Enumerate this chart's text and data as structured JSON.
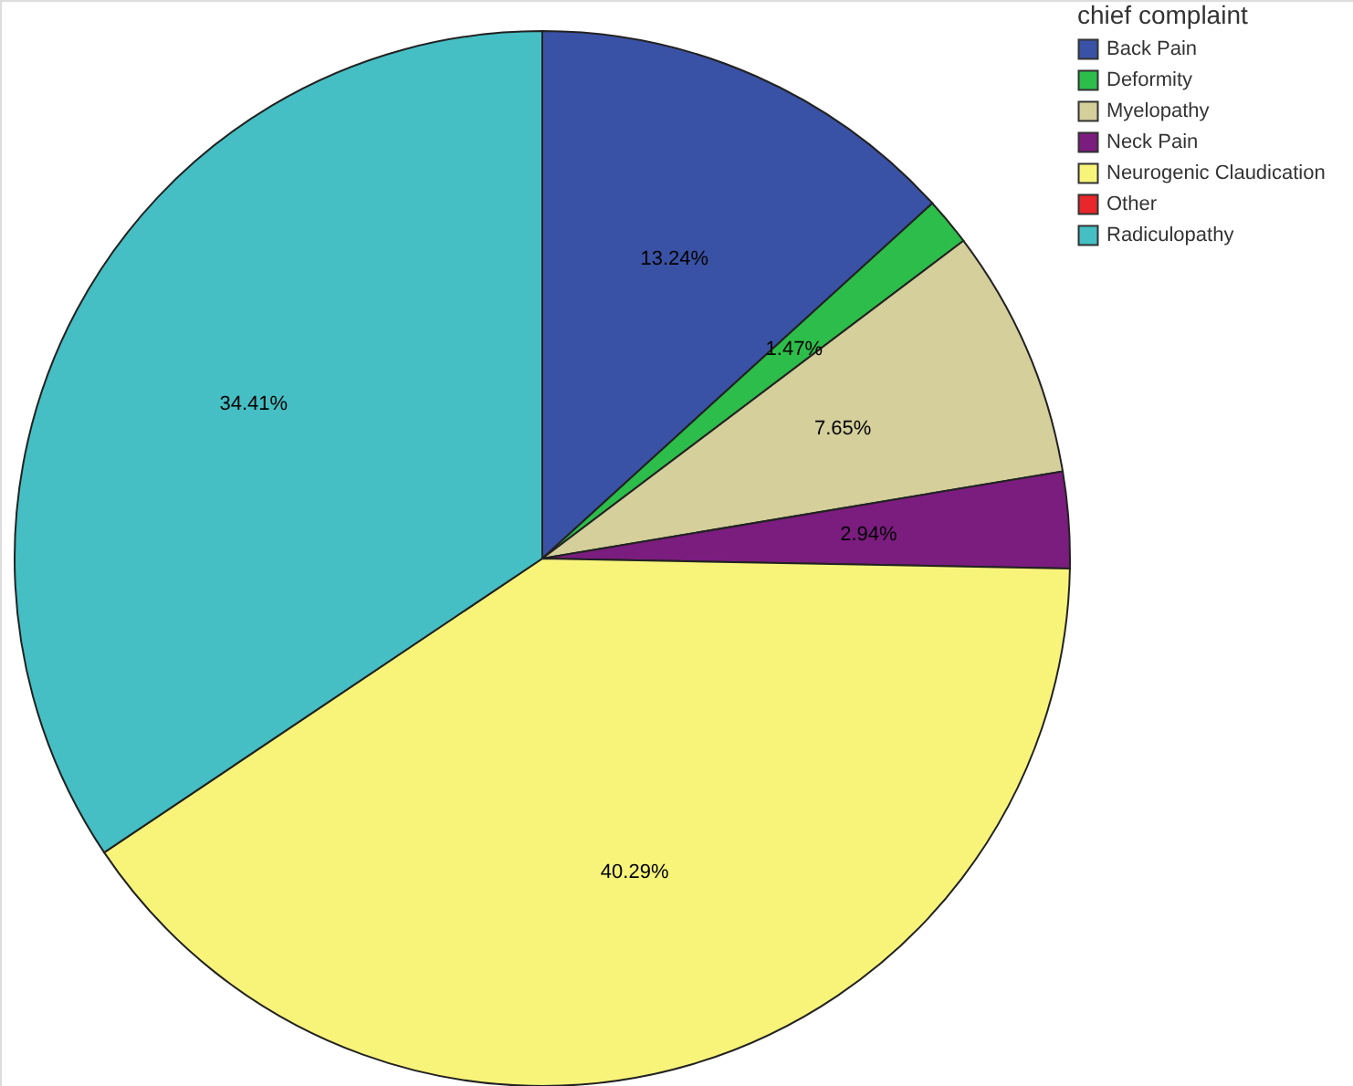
{
  "chart_data": {
    "type": "pie",
    "legend_title": "chief complaint",
    "legend": "top right",
    "categories": [
      "Back Pain",
      "Deformity",
      "Myelopathy",
      "Neck Pain",
      "Neurogenic Claudication",
      "Other",
      "Radiculopathy"
    ],
    "values": [
      13.24,
      1.47,
      7.65,
      2.94,
      40.29,
      0,
      34.41
    ],
    "colors": [
      "#3a52a5",
      "#2dbd4a",
      "#d4cf9b",
      "#7b1c7f",
      "#f8f47a",
      "#e8262b",
      "#45bfc4"
    ],
    "value_labels": [
      "13.24%",
      "1.47%",
      "7.65%",
      "2.94%",
      "40.29%",
      null,
      "34.41%"
    ]
  }
}
